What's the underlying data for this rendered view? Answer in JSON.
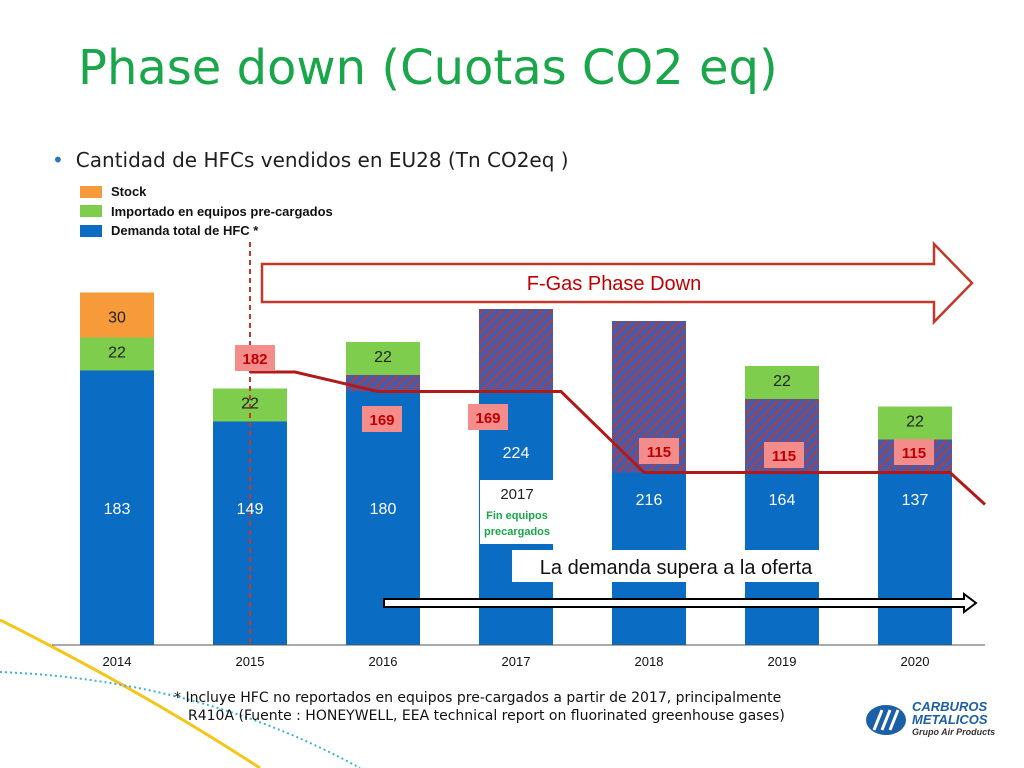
{
  "title": "Phase down (Cuotas CO2 eq)",
  "bullet": "Cantidad de HFCs vendidos en EU28 (Tn CO2eq )",
  "legend": [
    {
      "label": "Stock",
      "color": "#f79a3a"
    },
    {
      "label": "Importado en equipos pre-cargados",
      "color": "#7fcd4d"
    },
    {
      "label": "Demanda total de HFC *",
      "color": "#0a6cc2"
    }
  ],
  "colors": {
    "demand": "#0a6cc2",
    "imported": "#7fcd4d",
    "stock": "#f79a3a",
    "overdemand": "#b9d9ef",
    "phasedown_line": "#b01a1a",
    "quota_label_bg": "#f48c8c",
    "quota_label_text": "#c00000",
    "hatch_bg": "#4a5aa8",
    "hatch_line": "#c0392b"
  },
  "chart_data": {
    "type": "bar",
    "stacked": true,
    "categories": [
      "2014",
      "2015",
      "2016",
      "2017",
      "2018",
      "2019",
      "2020"
    ],
    "series": [
      {
        "name": "Demanda total de HFC *",
        "values": [
          183,
          149,
          180,
          224,
          216,
          164,
          137
        ]
      },
      {
        "name": "Importado en equipos pre-cargados",
        "values": [
          22,
          22,
          22,
          null,
          null,
          22,
          22
        ]
      },
      {
        "name": "Stock",
        "values": [
          30,
          null,
          null,
          null,
          null,
          null,
          null
        ]
      }
    ],
    "quota_line": {
      "name": "F-Gas Phase Down",
      "values": [
        null,
        182,
        169,
        169,
        115,
        115,
        115
      ],
      "labels": [
        "",
        "182",
        "169",
        "169",
        "115",
        "115",
        "115"
      ]
    },
    "annotations": {
      "arrow_label": "F-Gas Phase Down",
      "demand_label": "La demanda supera a la oferta",
      "note_2017_year": "2017",
      "note_2017_text": [
        "Fin equipos",
        "precargados"
      ]
    },
    "legend_position": "top-left",
    "grid": false
  },
  "footnote": [
    "* Incluye HFC no reportados en equipos pre-cargados a partir de 2017, principalmente",
    "R410A (Fuente : HONEYWELL, EEA technical report on fluorinated greenhouse gases)"
  ],
  "logo": {
    "line1": "CARBUROS",
    "line2": "METALICOS",
    "line3": "Grupo Air Products"
  }
}
